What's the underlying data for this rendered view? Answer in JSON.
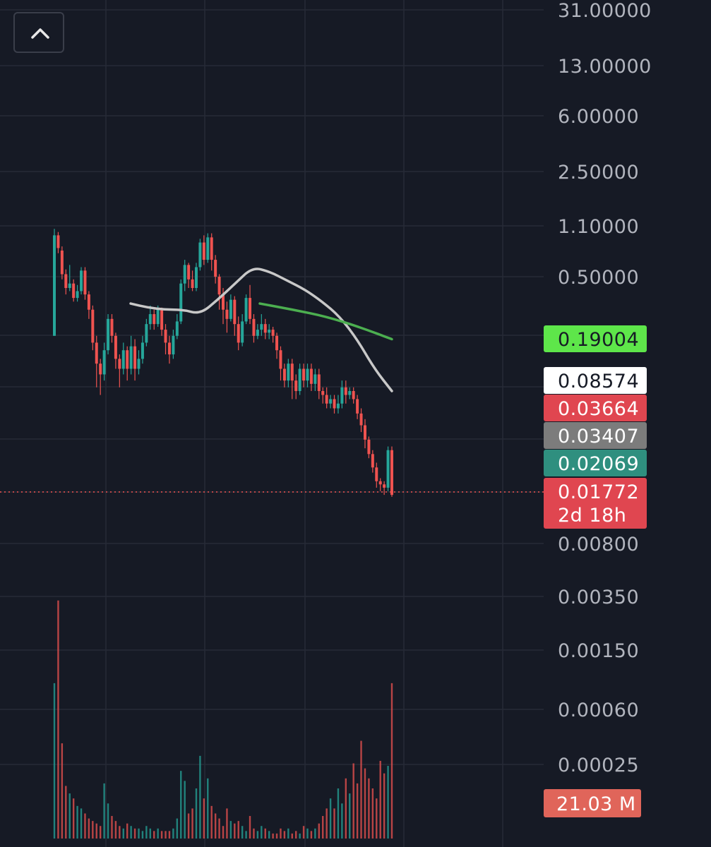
{
  "toolbar": {
    "collapse_icon": "chevron-up-icon"
  },
  "colors": {
    "background": "#161a25",
    "grid": "#262a36",
    "up": "#26a69a",
    "down": "#ef5350",
    "ma_white": "#c8c8c8",
    "ma_green": "#4caf50"
  },
  "chart_data": {
    "type": "candlestick",
    "y_scale": "log",
    "price_axis_ticks": [
      "31.00000",
      "13.00000",
      "6.00000",
      "2.50000",
      "1.10000",
      "0.50000",
      "0.00800",
      "0.00350",
      "0.00150",
      "0.00060",
      "0.00025"
    ],
    "price_tags": [
      {
        "label": "0.19004",
        "bg": "#5ee64a",
        "fg": "#161a25"
      },
      {
        "label": "0.08574",
        "bg": "#ffffff",
        "fg": "#161a25"
      },
      {
        "label": "0.03664",
        "bg": "#e04650",
        "fg": "#ffffff"
      },
      {
        "label": "0.03407",
        "bg": "#7c7c7c",
        "fg": "#ffffff"
      },
      {
        "label": "0.02069",
        "bg": "#2f8f7f",
        "fg": "#ffffff"
      },
      {
        "label": "0.01772",
        "bg": "#e04650",
        "fg": "#ffffff"
      }
    ],
    "countdown": "2d 18h",
    "volume_tag": "21.03 M",
    "current_price": 0.01772,
    "candles": [
      [
        0.2,
        0.95,
        1.05,
        0.2
      ],
      [
        0.95,
        0.78,
        1.0,
        0.72
      ],
      [
        0.75,
        0.52,
        0.8,
        0.48
      ],
      [
        0.52,
        0.42,
        0.56,
        0.38
      ],
      [
        0.42,
        0.45,
        0.6,
        0.4
      ],
      [
        0.45,
        0.36,
        0.48,
        0.34
      ],
      [
        0.36,
        0.4,
        0.44,
        0.34
      ],
      [
        0.4,
        0.55,
        0.58,
        0.38
      ],
      [
        0.55,
        0.38,
        0.58,
        0.35
      ],
      [
        0.38,
        0.3,
        0.4,
        0.26
      ],
      [
        0.3,
        0.18,
        0.32,
        0.16
      ],
      [
        0.18,
        0.13,
        0.2,
        0.09
      ],
      [
        0.13,
        0.11,
        0.14,
        0.08
      ],
      [
        0.11,
        0.16,
        0.18,
        0.1
      ],
      [
        0.16,
        0.26,
        0.28,
        0.15
      ],
      [
        0.26,
        0.2,
        0.28,
        0.18
      ],
      [
        0.2,
        0.14,
        0.21,
        0.12
      ],
      [
        0.14,
        0.12,
        0.15,
        0.09
      ],
      [
        0.12,
        0.16,
        0.18,
        0.11
      ],
      [
        0.16,
        0.12,
        0.17,
        0.1
      ],
      [
        0.12,
        0.17,
        0.2,
        0.11
      ],
      [
        0.17,
        0.12,
        0.19,
        0.1
      ],
      [
        0.12,
        0.14,
        0.16,
        0.11
      ],
      [
        0.14,
        0.18,
        0.2,
        0.13
      ],
      [
        0.18,
        0.24,
        0.26,
        0.17
      ],
      [
        0.24,
        0.28,
        0.32,
        0.22
      ],
      [
        0.28,
        0.24,
        0.3,
        0.22
      ],
      [
        0.24,
        0.3,
        0.32,
        0.23
      ],
      [
        0.3,
        0.22,
        0.31,
        0.2
      ],
      [
        0.22,
        0.18,
        0.24,
        0.15
      ],
      [
        0.18,
        0.15,
        0.2,
        0.13
      ],
      [
        0.15,
        0.2,
        0.22,
        0.14
      ],
      [
        0.2,
        0.25,
        0.28,
        0.19
      ],
      [
        0.25,
        0.45,
        0.48,
        0.24
      ],
      [
        0.45,
        0.6,
        0.65,
        0.4
      ],
      [
        0.6,
        0.48,
        0.62,
        0.42
      ],
      [
        0.48,
        0.42,
        0.55,
        0.4
      ],
      [
        0.42,
        0.58,
        0.62,
        0.4
      ],
      [
        0.58,
        0.85,
        0.9,
        0.55
      ],
      [
        0.85,
        0.65,
        0.95,
        0.6
      ],
      [
        0.65,
        0.92,
        0.98,
        0.62
      ],
      [
        0.92,
        0.65,
        0.98,
        0.55
      ],
      [
        0.65,
        0.5,
        0.7,
        0.45
      ],
      [
        0.5,
        0.38,
        0.52,
        0.3
      ],
      [
        0.38,
        0.3,
        0.42,
        0.24
      ],
      [
        0.3,
        0.26,
        0.34,
        0.21
      ],
      [
        0.26,
        0.35,
        0.38,
        0.25
      ],
      [
        0.35,
        0.24,
        0.37,
        0.2
      ],
      [
        0.24,
        0.18,
        0.27,
        0.16
      ],
      [
        0.18,
        0.25,
        0.28,
        0.17
      ],
      [
        0.25,
        0.36,
        0.38,
        0.24
      ],
      [
        0.36,
        0.26,
        0.44,
        0.24
      ],
      [
        0.26,
        0.2,
        0.28,
        0.18
      ],
      [
        0.2,
        0.22,
        0.24,
        0.19
      ],
      [
        0.22,
        0.24,
        0.28,
        0.2
      ],
      [
        0.24,
        0.21,
        0.26,
        0.19
      ],
      [
        0.21,
        0.22,
        0.24,
        0.19
      ],
      [
        0.22,
        0.2,
        0.23,
        0.18
      ],
      [
        0.2,
        0.16,
        0.21,
        0.14
      ],
      [
        0.16,
        0.12,
        0.17,
        0.1
      ],
      [
        0.12,
        0.1,
        0.13,
        0.09
      ],
      [
        0.1,
        0.13,
        0.14,
        0.09
      ],
      [
        0.13,
        0.1,
        0.14,
        0.075
      ],
      [
        0.1,
        0.085,
        0.11,
        0.075
      ],
      [
        0.085,
        0.12,
        0.13,
        0.08
      ],
      [
        0.12,
        0.1,
        0.13,
        0.09
      ],
      [
        0.1,
        0.12,
        0.13,
        0.09
      ],
      [
        0.12,
        0.095,
        0.13,
        0.085
      ],
      [
        0.095,
        0.11,
        0.12,
        0.085
      ],
      [
        0.11,
        0.085,
        0.12,
        0.075
      ],
      [
        0.085,
        0.08,
        0.09,
        0.07
      ],
      [
        0.08,
        0.07,
        0.09,
        0.065
      ],
      [
        0.07,
        0.075,
        0.08,
        0.065
      ],
      [
        0.075,
        0.065,
        0.08,
        0.06
      ],
      [
        0.065,
        0.07,
        0.08,
        0.06
      ],
      [
        0.07,
        0.09,
        0.1,
        0.065
      ],
      [
        0.09,
        0.08,
        0.1,
        0.07
      ],
      [
        0.08,
        0.085,
        0.09,
        0.075
      ],
      [
        0.085,
        0.075,
        0.09,
        0.07
      ],
      [
        0.075,
        0.06,
        0.08,
        0.055
      ],
      [
        0.06,
        0.05,
        0.065,
        0.045
      ],
      [
        0.05,
        0.04,
        0.055,
        0.035
      ],
      [
        0.04,
        0.032,
        0.042,
        0.03
      ],
      [
        0.032,
        0.026,
        0.034,
        0.024
      ],
      [
        0.026,
        0.021,
        0.028,
        0.019
      ],
      [
        0.021,
        0.02,
        0.022,
        0.018
      ],
      [
        0.02,
        0.019,
        0.021,
        0.017
      ],
      [
        0.019,
        0.034,
        0.036,
        0.018
      ],
      [
        0.034,
        0.017,
        0.036,
        0.0165
      ]
    ],
    "ma_white": [
      0.33,
      0.31,
      0.3,
      0.3,
      0.28,
      0.35,
      0.45,
      0.58,
      0.54,
      0.47,
      0.41,
      0.34,
      0.27,
      0.19,
      0.12,
      0.085
    ],
    "ma_green": [
      0.33,
      0.3,
      0.27,
      0.23,
      0.19
    ],
    "volumes": [
      0.62,
      0.95,
      0.38,
      0.21,
      0.18,
      0.16,
      0.13,
      0.12,
      0.1,
      0.08,
      0.07,
      0.06,
      0.05,
      0.22,
      0.14,
      0.09,
      0.07,
      0.05,
      0.04,
      0.06,
      0.05,
      0.04,
      0.04,
      0.03,
      0.05,
      0.04,
      0.03,
      0.04,
      0.03,
      0.03,
      0.03,
      0.04,
      0.08,
      0.27,
      0.23,
      0.1,
      0.12,
      0.2,
      0.33,
      0.16,
      0.24,
      0.13,
      0.1,
      0.08,
      0.05,
      0.12,
      0.07,
      0.06,
      0.07,
      0.05,
      0.03,
      0.09,
      0.04,
      0.03,
      0.05,
      0.04,
      0.03,
      0.02,
      0.02,
      0.04,
      0.03,
      0.04,
      0.02,
      0.03,
      0.02,
      0.05,
      0.04,
      0.03,
      0.04,
      0.06,
      0.09,
      0.12,
      0.16,
      0.12,
      0.2,
      0.14,
      0.24,
      0.18,
      0.3,
      0.22,
      0.39,
      0.28,
      0.24,
      0.2,
      0.16,
      0.31,
      0.26,
      0.29,
      0.62
    ]
  }
}
